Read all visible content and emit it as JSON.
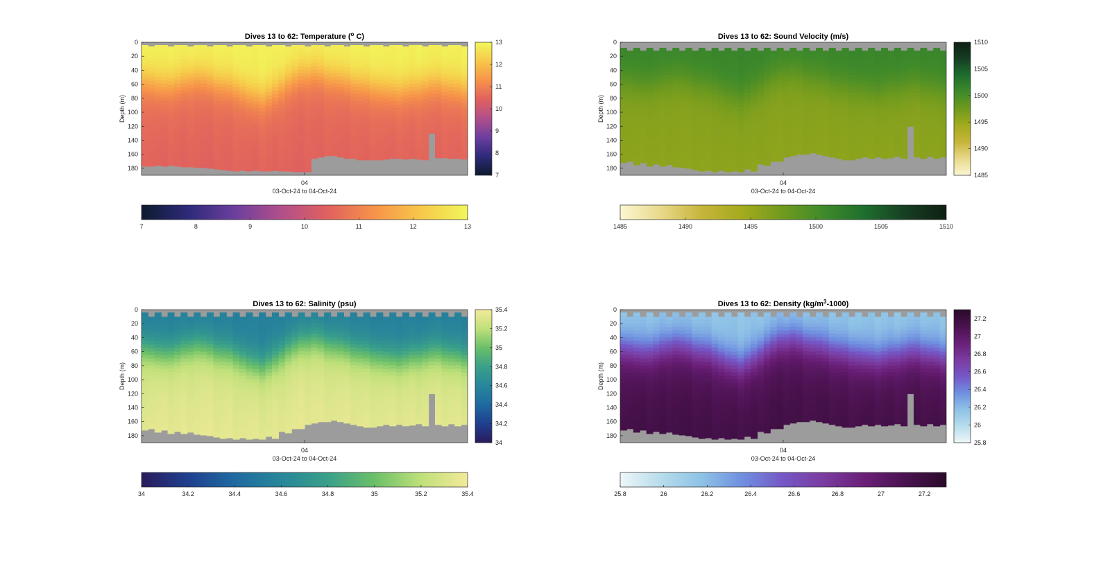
{
  "chart_data": [
    {
      "type": "heatmap",
      "id": "temperature",
      "title": "Dives 13 to 62: Temperature (",
      "title_sup": "o",
      "title_suffix": " C)",
      "ylabel": "Depth (m)",
      "xlabel": "03-Oct-24 to 04-Oct-24",
      "x_ticks": [
        "04"
      ],
      "y_ticks": [
        0,
        20,
        40,
        60,
        80,
        100,
        120,
        140,
        160,
        180
      ],
      "ylim": [
        0,
        190
      ],
      "y_reversed": true,
      "n_dives": 50,
      "colorbar_range": [
        7,
        13
      ],
      "colorbar_ticks": [
        7,
        8,
        9,
        10,
        11,
        12,
        13
      ],
      "colormap": [
        "#0d1a2e",
        "#2e2a7a",
        "#6b3f9e",
        "#b14f8a",
        "#e0615e",
        "#f7934a",
        "#f7c84a",
        "#f1f75a"
      ],
      "mixed_layer": {
        "surface_value": 12.9,
        "deep_value": 10.6,
        "profile_sharpness": 14
      },
      "mixed_layer_depth_by_dive": [
        55,
        57,
        60,
        62,
        60,
        58,
        55,
        52,
        50,
        52,
        55,
        58,
        60,
        62,
        65,
        70,
        75,
        78,
        80,
        75,
        70,
        62,
        55,
        50,
        46,
        44,
        42,
        45,
        48,
        50,
        52,
        55,
        58,
        60,
        62,
        64,
        66,
        68,
        70,
        70,
        68,
        66,
        64,
        62,
        60,
        60,
        62,
        64,
        66,
        68
      ],
      "surface_gap_depth_by_dive": [
        4,
        6,
        4,
        4,
        6,
        4,
        4,
        6,
        4,
        4,
        6,
        4,
        4,
        6,
        4,
        4,
        6,
        4,
        4,
        6,
        4,
        4,
        6,
        4,
        4,
        6,
        4,
        4,
        6,
        4,
        4,
        6,
        4,
        4,
        6,
        4,
        4,
        6,
        4,
        4,
        6,
        4,
        4,
        6,
        4,
        4,
        6,
        4,
        4,
        6
      ],
      "max_depth_by_dive": [
        177,
        177,
        176,
        177,
        176,
        177,
        178,
        178,
        179,
        179,
        180,
        181,
        182,
        183,
        184,
        183,
        184,
        183,
        184,
        184,
        183,
        184,
        184,
        185,
        185,
        185,
        166,
        164,
        162,
        162,
        164,
        166,
        166,
        168,
        168,
        168,
        168,
        167,
        166,
        166,
        167,
        166,
        167,
        168,
        166,
        165,
        165,
        166,
        166,
        167
      ],
      "spike": {
        "dive": 44,
        "top_depth": 130
      },
      "gap_color": "#9c9c9c"
    },
    {
      "type": "heatmap",
      "id": "sound_velocity",
      "title": "Dives 13 to 62: Sound Velocity (m/s)",
      "ylabel": "Depth (m)",
      "xlabel": "03-Oct-24 to 04-Oct-24",
      "x_ticks": [
        "04"
      ],
      "y_ticks": [
        0,
        20,
        40,
        60,
        80,
        100,
        120,
        140,
        160,
        180
      ],
      "ylim": [
        0,
        190
      ],
      "y_reversed": true,
      "n_dives": 50,
      "colorbar_range": [
        1485,
        1510
      ],
      "colorbar_ticks": [
        1485,
        1490,
        1495,
        1500,
        1505,
        1510
      ],
      "colormap": [
        "#fbf6d3",
        "#e8d98a",
        "#c7b43a",
        "#a3ab1d",
        "#6f9a1e",
        "#3f8a2a",
        "#1e6e2e",
        "#163e23",
        "#0e1f12"
      ],
      "mixed_layer": {
        "surface_value": 1501.2,
        "deep_value": 1496.0,
        "profile_sharpness": 14
      },
      "mixed_layer_depth_by_dive": [
        55,
        57,
        60,
        62,
        60,
        58,
        55,
        52,
        50,
        52,
        55,
        58,
        60,
        62,
        65,
        70,
        75,
        78,
        80,
        75,
        70,
        62,
        55,
        50,
        46,
        44,
        42,
        45,
        48,
        50,
        52,
        55,
        58,
        60,
        62,
        64,
        66,
        68,
        70,
        70,
        68,
        66,
        64,
        62,
        60,
        60,
        62,
        64,
        66,
        68
      ],
      "surface_gap_depth_by_dive": [
        8,
        12,
        8,
        12,
        8,
        12,
        8,
        12,
        8,
        12,
        8,
        12,
        8,
        12,
        8,
        12,
        8,
        12,
        8,
        12,
        8,
        12,
        8,
        12,
        8,
        12,
        8,
        12,
        8,
        12,
        8,
        12,
        8,
        12,
        8,
        12,
        8,
        12,
        8,
        12,
        8,
        12,
        8,
        12,
        8,
        12,
        8,
        12,
        8,
        12
      ],
      "max_depth_by_dive": [
        172,
        170,
        175,
        172,
        177,
        174,
        177,
        175,
        178,
        179,
        180,
        182,
        184,
        183,
        185,
        183,
        185,
        184,
        185,
        181,
        184,
        174,
        176,
        170,
        170,
        164,
        162,
        160,
        160,
        158,
        160,
        162,
        164,
        166,
        168,
        168,
        166,
        164,
        166,
        164,
        166,
        165,
        163,
        166,
        166,
        164,
        166,
        163,
        166,
        164
      ],
      "spike": {
        "dive": 44,
        "top_depth": 120
      },
      "gap_color": "#9c9c9c"
    },
    {
      "type": "heatmap",
      "id": "salinity",
      "title": "Dives 13 to 62: Salinity (psu)",
      "ylabel": "Depth (m)",
      "xlabel": "03-Oct-24 to 04-Oct-24",
      "x_ticks": [
        "04"
      ],
      "y_ticks": [
        0,
        20,
        40,
        60,
        80,
        100,
        120,
        140,
        160,
        180
      ],
      "ylim": [
        0,
        190
      ],
      "y_reversed": true,
      "n_dives": 50,
      "colorbar_range": [
        34,
        35.4
      ],
      "colorbar_ticks": [
        34,
        34.2,
        34.4,
        34.6,
        34.8,
        35,
        35.2,
        35.4
      ],
      "colormap": [
        "#2a1b5c",
        "#1f3f8f",
        "#1f6aa0",
        "#28869a",
        "#3aa089",
        "#6bbf69",
        "#bfe07a",
        "#f3ea9a"
      ],
      "mixed_layer": {
        "surface_value": 34.55,
        "deep_value": 35.3,
        "profile_sharpness": 14
      },
      "mixed_layer_depth_by_dive": [
        55,
        57,
        60,
        62,
        60,
        58,
        55,
        52,
        50,
        52,
        55,
        58,
        60,
        62,
        65,
        70,
        75,
        78,
        80,
        75,
        70,
        62,
        55,
        50,
        46,
        44,
        42,
        45,
        48,
        50,
        52,
        55,
        58,
        60,
        62,
        64,
        66,
        68,
        70,
        70,
        68,
        66,
        64,
        62,
        60,
        60,
        62,
        64,
        66,
        68
      ],
      "surface_gap_depth_by_dive": [
        4,
        10,
        4,
        10,
        4,
        10,
        4,
        10,
        4,
        10,
        4,
        10,
        4,
        10,
        4,
        10,
        4,
        10,
        4,
        10,
        4,
        10,
        4,
        10,
        4,
        10,
        4,
        10,
        4,
        10,
        4,
        10,
        4,
        10,
        4,
        10,
        4,
        10,
        4,
        10,
        4,
        10,
        4,
        10,
        4,
        10,
        4,
        10,
        4,
        10
      ],
      "max_depth_by_dive": [
        172,
        170,
        175,
        172,
        177,
        174,
        177,
        175,
        178,
        179,
        180,
        182,
        184,
        183,
        185,
        183,
        185,
        184,
        185,
        181,
        184,
        174,
        176,
        170,
        170,
        164,
        162,
        160,
        160,
        158,
        160,
        162,
        164,
        166,
        168,
        168,
        166,
        164,
        166,
        164,
        166,
        165,
        163,
        166,
        166,
        164,
        166,
        163,
        166,
        164
      ],
      "spike": {
        "dive": 44,
        "top_depth": 120
      },
      "gap_color": "#9c9c9c"
    },
    {
      "type": "heatmap",
      "id": "density",
      "title": "Dives 13 to 62: Density (kg/m",
      "title_sup": "3",
      "title_suffix": "-1000)",
      "ylabel": "Depth (m)",
      "xlabel": "03-Oct-24 to 04-Oct-24",
      "x_ticks": [
        "04"
      ],
      "y_ticks": [
        0,
        20,
        40,
        60,
        80,
        100,
        120,
        140,
        160,
        180
      ],
      "ylim": [
        0,
        190
      ],
      "y_reversed": true,
      "n_dives": 50,
      "colorbar_range": [
        25.8,
        27.3
      ],
      "colorbar_ticks": [
        25.8,
        26,
        26.2,
        26.4,
        26.6,
        26.8,
        27,
        27.2
      ],
      "colormap": [
        "#eef7f8",
        "#b7dcec",
        "#8ec2e6",
        "#6f8fe0",
        "#7557c6",
        "#7a3b9f",
        "#6a1f78",
        "#4a124f",
        "#2a0a2a"
      ],
      "mixed_layer": {
        "surface_value": 26.15,
        "deep_value": 27.1,
        "profile_sharpness": 14
      },
      "mixed_layer_depth_by_dive": [
        55,
        57,
        60,
        62,
        60,
        58,
        55,
        52,
        50,
        52,
        55,
        58,
        60,
        62,
        65,
        70,
        75,
        78,
        80,
        75,
        70,
        62,
        55,
        50,
        46,
        44,
        42,
        45,
        48,
        50,
        52,
        55,
        58,
        60,
        62,
        64,
        66,
        68,
        70,
        70,
        68,
        66,
        64,
        62,
        60,
        60,
        62,
        64,
        66,
        68
      ],
      "surface_gap_depth_by_dive": [
        4,
        10,
        4,
        10,
        4,
        10,
        4,
        10,
        4,
        10,
        4,
        10,
        4,
        10,
        4,
        10,
        4,
        10,
        4,
        10,
        4,
        10,
        4,
        10,
        4,
        10,
        4,
        10,
        4,
        10,
        4,
        10,
        4,
        10,
        4,
        10,
        4,
        10,
        4,
        10,
        4,
        10,
        4,
        10,
        4,
        10,
        4,
        10,
        4,
        10
      ],
      "max_depth_by_dive": [
        172,
        170,
        175,
        172,
        177,
        174,
        177,
        175,
        178,
        179,
        180,
        182,
        184,
        183,
        185,
        183,
        185,
        184,
        185,
        181,
        184,
        174,
        176,
        170,
        170,
        164,
        162,
        160,
        160,
        158,
        160,
        162,
        164,
        166,
        168,
        168,
        166,
        164,
        166,
        164,
        166,
        165,
        163,
        166,
        166,
        164,
        166,
        163,
        166,
        164
      ],
      "spike": {
        "dive": 44,
        "top_depth": 120
      },
      "gap_color": "#9c9c9c"
    }
  ]
}
